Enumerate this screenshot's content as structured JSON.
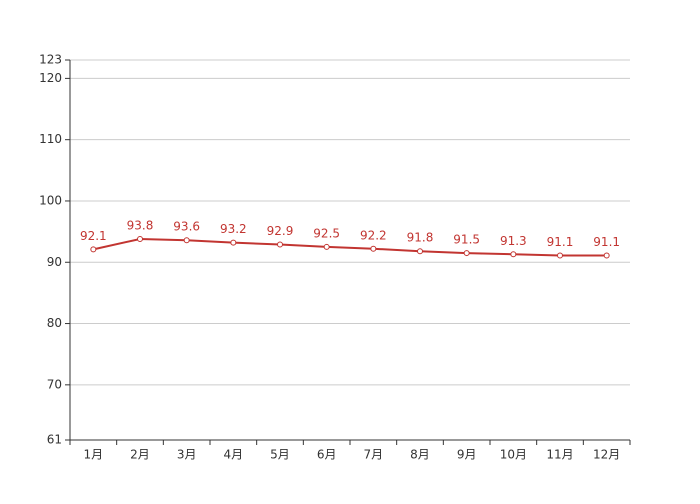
{
  "chart_data": {
    "type": "line",
    "categories": [
      "1月",
      "2月",
      "3月",
      "4月",
      "5月",
      "6月",
      "7月",
      "8月",
      "9月",
      "10月",
      "11月",
      "12月"
    ],
    "series": [
      {
        "color": "#c23531",
        "values": [
          92.1,
          93.8,
          93.6,
          93.2,
          92.9,
          92.5,
          92.2,
          91.8,
          91.5,
          91.3,
          91.1,
          91.1
        ]
      }
    ],
    "ylim": [
      61,
      123
    ],
    "yticks": [
      61,
      70,
      80,
      90,
      100,
      110,
      120,
      123
    ],
    "grid": true
  }
}
